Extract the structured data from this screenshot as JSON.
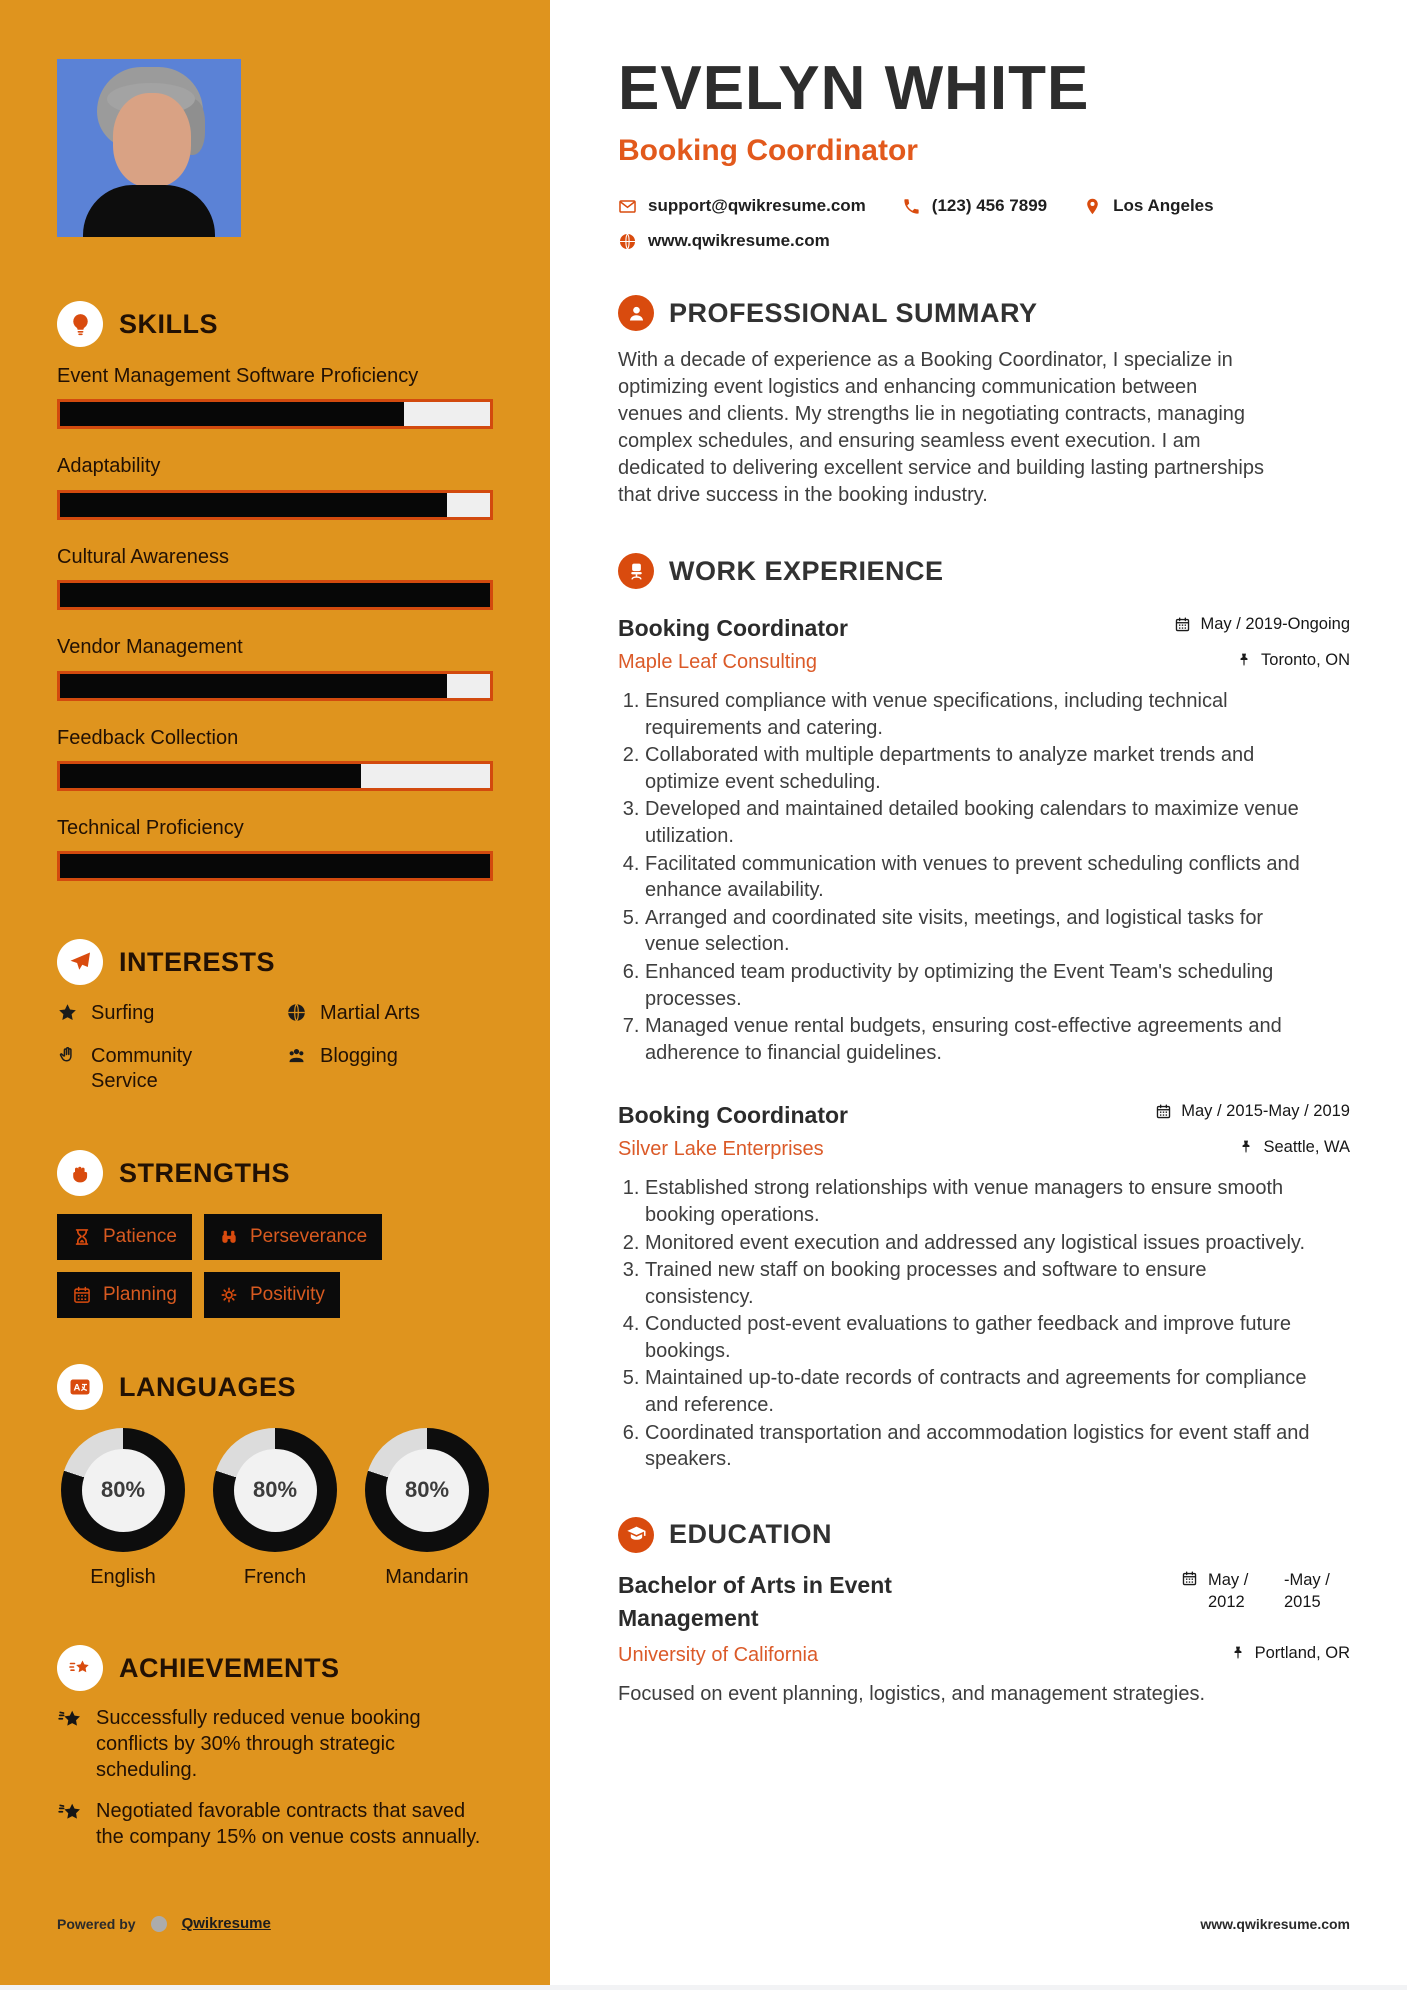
{
  "colors": {
    "sidebar_bg": "#DF941E",
    "accent": "#D94B0E",
    "accent_soft": "#DB5A28",
    "title_orange": "#E2591C",
    "bar_border": "#D24A0E",
    "bar_fill": "#070707",
    "bar_empty": "#EFEFEF",
    "chip_bg": "#0B0B0B",
    "chip_text": "#D85A20",
    "donut_fill": "#0D0D0D",
    "donut_empty": "#DCDCDC",
    "donut_center": "#F2F2F2",
    "photo_bg": "#5B82D6",
    "sidebar_text": "#221104",
    "heading": "#323232",
    "body_text": "#3E3E3E"
  },
  "header": {
    "name": "EVELYN WHITE",
    "title": "Booking Coordinator",
    "email": "support@qwikresume.com",
    "phone": "(123) 456 7899",
    "location": "Los Angeles",
    "website": "www.qwikresume.com"
  },
  "summary": {
    "title": "PROFESSIONAL SUMMARY",
    "text": "With a decade of experience as a Booking Coordinator, I specialize in optimizing event logistics and enhancing communication between venues and clients. My strengths lie in negotiating contracts, managing complex schedules, and ensuring seamless event execution. I am dedicated to delivering excellent service and building lasting partnerships that drive success in the booking industry."
  },
  "experience": {
    "title": "WORK EXPERIENCE",
    "jobs": [
      {
        "role": "Booking Coordinator",
        "company": "Maple Leaf Consulting",
        "dates": "May / 2019-Ongoing",
        "location": "Toronto, ON",
        "bullets": [
          "Ensured compliance with venue specifications, including technical requirements and catering.",
          "Collaborated with multiple departments to analyze market trends and optimize event scheduling.",
          "Developed and maintained detailed booking calendars to maximize venue utilization.",
          "Facilitated communication with venues to prevent scheduling conflicts and enhance availability.",
          "Arranged and coordinated site visits, meetings, and logistical tasks for venue selection.",
          "Enhanced team productivity by optimizing the Event Team's scheduling processes.",
          "Managed venue rental budgets, ensuring cost-effective agreements and adherence to financial guidelines."
        ]
      },
      {
        "role": "Booking Coordinator",
        "company": "Silver Lake Enterprises",
        "dates": "May / 2015-May / 2019",
        "location": "Seattle, WA",
        "bullets": [
          "Established strong relationships with venue managers to ensure smooth booking operations.",
          "Monitored event execution and addressed any logistical issues proactively.",
          "Trained new staff on booking processes and software to ensure consistency.",
          "Conducted post-event evaluations to gather feedback and improve future bookings.",
          "Maintained up-to-date records of contracts and agreements for compliance and reference.",
          "Coordinated transportation and accommodation logistics for event staff and speakers."
        ]
      }
    ]
  },
  "education": {
    "title": "EDUCATION",
    "degree": "Bachelor of Arts in Event Management",
    "school": "University of California",
    "date_start": "May / 2012",
    "date_end": "-May / 2015",
    "location": "Portland, OR",
    "note": "Focused on event planning, logistics, and management strategies."
  },
  "sidebar": {
    "skills": {
      "title": "SKILLS",
      "items": [
        {
          "name": "Event Management Software Proficiency",
          "level": 80
        },
        {
          "name": "Adaptability",
          "level": 90
        },
        {
          "name": "Cultural Awareness",
          "level": 100
        },
        {
          "name": "Vendor Management",
          "level": 90
        },
        {
          "name": "Feedback Collection",
          "level": 70
        },
        {
          "name": "Technical Proficiency",
          "level": 100
        }
      ]
    },
    "interests": {
      "title": "INTERESTS",
      "items": [
        {
          "label": "Surfing",
          "icon": "star-icon"
        },
        {
          "label": "Martial Arts",
          "icon": "globe-icon"
        },
        {
          "label": "Community Service",
          "icon": "hands-icon"
        },
        {
          "label": "Blogging",
          "icon": "users-icon"
        }
      ]
    },
    "strengths": {
      "title": "STRENGTHS",
      "items": [
        {
          "label": "Patience",
          "icon": "hourglass-icon"
        },
        {
          "label": "Perseverance",
          "icon": "binoculars-icon"
        },
        {
          "label": "Planning",
          "icon": "calendar-icon"
        },
        {
          "label": "Positivity",
          "icon": "sun-icon"
        }
      ]
    },
    "languages": {
      "title": "LANGUAGES",
      "items": [
        {
          "label": "English",
          "percent": 80,
          "percent_label": "80%"
        },
        {
          "label": "French",
          "percent": 80,
          "percent_label": "80%"
        },
        {
          "label": "Mandarin",
          "percent": 80,
          "percent_label": "80%"
        }
      ]
    },
    "achievements": {
      "title": "ACHIEVEMENTS",
      "items": [
        "Successfully reduced venue booking conflicts by 30% through strategic scheduling.",
        "Negotiated favorable contracts that saved the company 15% on venue costs annually."
      ]
    },
    "footer": {
      "powered_by": "Powered by",
      "brand": "Qwikresume"
    }
  },
  "page_footer": {
    "website": "www.qwikresume.com"
  },
  "icons": {
    "skills": "lightbulb-icon",
    "interests": "paper-plane-icon",
    "strengths": "fist-icon",
    "languages": "language-card-icon",
    "achievements": "shooting-star-icon",
    "achievement_item": "star-lines-icon",
    "summary": "person-icon",
    "experience": "office-chair-icon",
    "education": "graduation-cap-icon",
    "email": "envelope-icon",
    "phone": "phone-icon",
    "location": "pin-icon",
    "website": "globe-icon",
    "dates": "calendar-icon",
    "place": "pushpin-icon",
    "brand": "q-logo-icon"
  }
}
